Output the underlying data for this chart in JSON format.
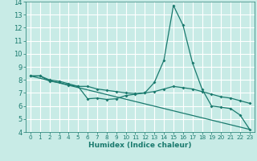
{
  "xlabel": "Humidex (Indice chaleur)",
  "xlim": [
    -0.5,
    23.5
  ],
  "ylim": [
    4,
    14
  ],
  "yticks": [
    4,
    5,
    6,
    7,
    8,
    9,
    10,
    11,
    12,
    13,
    14
  ],
  "xticks": [
    0,
    1,
    2,
    3,
    4,
    5,
    6,
    7,
    8,
    9,
    10,
    11,
    12,
    13,
    14,
    15,
    16,
    17,
    18,
    19,
    20,
    21,
    22,
    23
  ],
  "bg_color": "#c8ebe6",
  "grid_color": "#ffffff",
  "line_color": "#1a7a6e",
  "curve1_x": [
    0,
    1,
    2,
    3,
    4,
    5,
    6,
    7,
    8,
    9,
    10,
    11,
    12,
    13,
    14,
    15,
    16,
    17,
    18,
    19,
    20,
    21,
    22,
    23
  ],
  "curve1_y": [
    8.3,
    8.3,
    8.0,
    7.9,
    7.7,
    7.5,
    6.55,
    6.6,
    6.5,
    6.55,
    6.8,
    6.9,
    7.0,
    7.8,
    9.5,
    13.7,
    12.2,
    9.3,
    7.3,
    6.0,
    5.9,
    5.8,
    5.3,
    4.2
  ],
  "curve2_x": [
    0,
    1,
    2,
    3,
    4,
    5,
    6,
    7,
    8,
    9,
    10,
    11,
    12,
    13,
    14,
    15,
    16,
    17,
    18,
    19,
    20,
    21,
    22,
    23
  ],
  "curve2_y": [
    8.3,
    8.3,
    7.9,
    7.8,
    7.6,
    7.5,
    7.5,
    7.3,
    7.2,
    7.1,
    7.0,
    6.95,
    7.0,
    7.1,
    7.3,
    7.5,
    7.4,
    7.3,
    7.1,
    6.9,
    6.7,
    6.6,
    6.4,
    6.2
  ],
  "line3_x": [
    0,
    23
  ],
  "line3_y": [
    8.3,
    4.2
  ],
  "marker_size": 2.0,
  "line_width": 0.9
}
